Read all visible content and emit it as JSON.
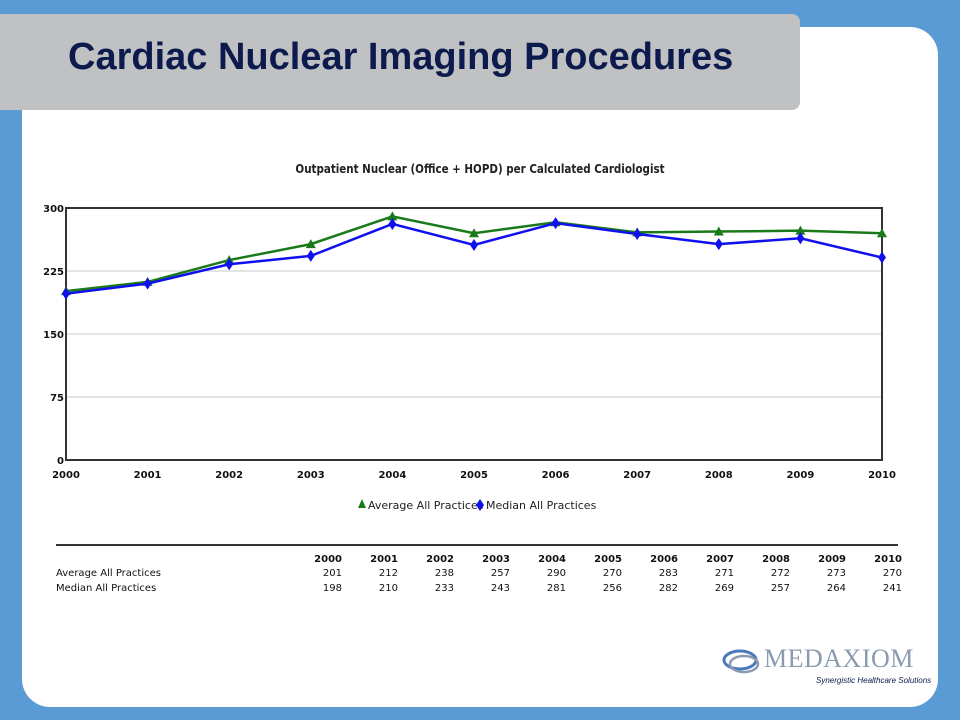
{
  "slide": {
    "title": "Cardiac Nuclear Imaging Procedures"
  },
  "chart_data": {
    "type": "line",
    "title": "Outpatient Nuclear (Office + HOPD) per Calculated Cardiologist",
    "x": [
      "2000",
      "2001",
      "2002",
      "2003",
      "2004",
      "2005",
      "2006",
      "2007",
      "2008",
      "2009",
      "2010"
    ],
    "ylim": [
      0,
      300
    ],
    "yticks": [
      0,
      75,
      150,
      225,
      300
    ],
    "grid": true,
    "legend_position": "bottom-center",
    "series": [
      {
        "name": "Average All Practices",
        "values": [
          201,
          212,
          238,
          257,
          290,
          270,
          283,
          271,
          272,
          273,
          270
        ],
        "color": "#1a7a1a",
        "marker": "triangle"
      },
      {
        "name": "Median All Practices",
        "values": [
          198,
          210,
          233,
          243,
          281,
          256,
          282,
          269,
          257,
          264,
          241
        ],
        "color": "#1010ee",
        "marker": "diamond"
      }
    ]
  },
  "table": {
    "headers": [
      "2000",
      "2001",
      "2002",
      "2003",
      "2004",
      "2005",
      "2006",
      "2007",
      "2008",
      "2009",
      "2010"
    ],
    "rows": [
      {
        "label": "Average All Practices",
        "values": [
          "201",
          "212",
          "238",
          "257",
          "290",
          "270",
          "283",
          "271",
          "272",
          "273",
          "270"
        ]
      },
      {
        "label": "Median All Practices",
        "values": [
          "198",
          "210",
          "233",
          "243",
          "281",
          "256",
          "282",
          "269",
          "257",
          "264",
          "241"
        ]
      }
    ]
  },
  "logo": {
    "name": "MedAxiom",
    "tagline": "Synergistic Healthcare Solutions"
  }
}
